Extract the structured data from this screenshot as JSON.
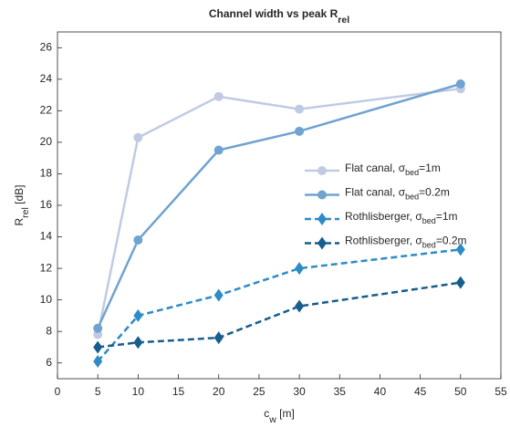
{
  "chart_data": {
    "type": "line",
    "title": {
      "main": "Channel width vs peak R",
      "sub": "rel"
    },
    "xlabel": {
      "main": "c",
      "sub": "w",
      "tail": " [m]"
    },
    "ylabel": {
      "main": "R",
      "sub": "rel",
      "tail": " [dB]"
    },
    "x": [
      5,
      10,
      20,
      30,
      50
    ],
    "series": [
      {
        "name": {
          "main": "Flat canal, σ",
          "sub": "bed",
          "tail": "=1m"
        },
        "color": "#c0cbe3",
        "dashed": false,
        "marker": "circle",
        "values": [
          7.8,
          20.3,
          22.9,
          22.1,
          23.4
        ]
      },
      {
        "name": {
          "main": "Flat canal, σ",
          "sub": "bed",
          "tail": "=0.2m"
        },
        "color": "#70a3d0",
        "dashed": false,
        "marker": "circle",
        "values": [
          8.2,
          13.8,
          19.5,
          20.7,
          23.7
        ]
      },
      {
        "name": {
          "main": "Rothlisberger, σ",
          "sub": "bed",
          "tail": "=1m"
        },
        "color": "#2e8bc6",
        "dashed": true,
        "marker": "diamond",
        "values": [
          6.1,
          9.0,
          10.3,
          12.0,
          13.2
        ]
      },
      {
        "name": {
          "main": "Rothlisberger, σ",
          "sub": "bed",
          "tail": "=0.2m"
        },
        "color": "#175e8e",
        "dashed": true,
        "marker": "diamond",
        "values": [
          7.0,
          7.3,
          7.6,
          9.6,
          11.1
        ]
      }
    ],
    "xlim": [
      0,
      55
    ],
    "xticks": [
      0,
      5,
      10,
      15,
      20,
      25,
      30,
      35,
      40,
      45,
      50,
      55
    ],
    "ylim": [
      5,
      27
    ],
    "yticks": [
      6,
      8,
      10,
      12,
      14,
      16,
      18,
      20,
      22,
      24,
      26
    ],
    "grid": false
  }
}
